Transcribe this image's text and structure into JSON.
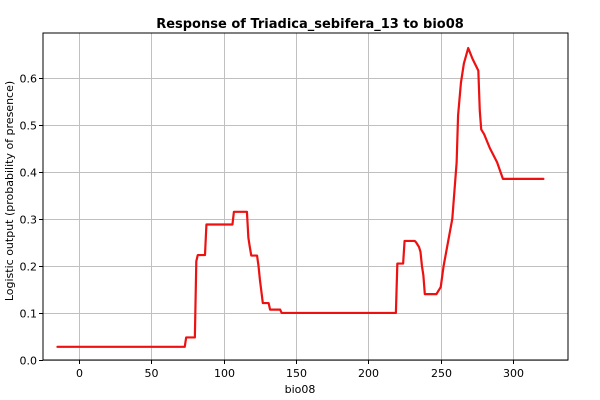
{
  "chart_data": {
    "type": "line",
    "title": "Response of Triadica_sebifera_13 to bio08",
    "xlabel": "bio08",
    "ylabel": "Logistic output (probability of presence)",
    "xlim": [
      -25,
      338
    ],
    "ylim": [
      0,
      0.695
    ],
    "xticks": [
      0,
      50,
      100,
      150,
      200,
      250,
      300
    ],
    "xtick_labels": [
      "0",
      "50",
      "100",
      "150",
      "200",
      "250",
      "300"
    ],
    "yticks": [
      0.0,
      0.1,
      0.2,
      0.3,
      0.4,
      0.5,
      0.6
    ],
    "ytick_labels": [
      "0.0",
      "0.1",
      "0.2",
      "0.3",
      "0.4",
      "0.5",
      "0.6"
    ],
    "grid": true,
    "line_color": "#ee1111",
    "series": [
      {
        "x": [
          -15,
          73,
          74,
          80,
          81,
          82,
          84,
          87,
          88,
          106,
          107,
          116,
          117,
          118,
          119,
          123,
          124,
          125,
          127,
          131,
          132,
          139,
          140,
          145,
          219,
          220,
          224,
          225,
          232,
          233,
          235,
          236,
          237,
          238,
          239,
          242,
          246,
          247,
          250,
          252,
          255,
          258,
          261,
          262,
          264,
          266,
          269,
          272,
          276,
          277,
          278,
          280,
          284,
          289,
          293,
          300,
          321
        ],
        "y": [
          0.028,
          0.028,
          0.048,
          0.048,
          0.21,
          0.223,
          0.223,
          0.223,
          0.288,
          0.288,
          0.315,
          0.315,
          0.26,
          0.24,
          0.222,
          0.222,
          0.2,
          0.17,
          0.121,
          0.121,
          0.107,
          0.107,
          0.1,
          0.1,
          0.1,
          0.205,
          0.205,
          0.253,
          0.253,
          0.25,
          0.24,
          0.23,
          0.2,
          0.18,
          0.14,
          0.14,
          0.14,
          0.14,
          0.155,
          0.2,
          0.25,
          0.3,
          0.42,
          0.52,
          0.59,
          0.63,
          0.663,
          0.64,
          0.615,
          0.53,
          0.49,
          0.48,
          0.45,
          0.42,
          0.385,
          0.385,
          0.385
        ]
      }
    ]
  }
}
